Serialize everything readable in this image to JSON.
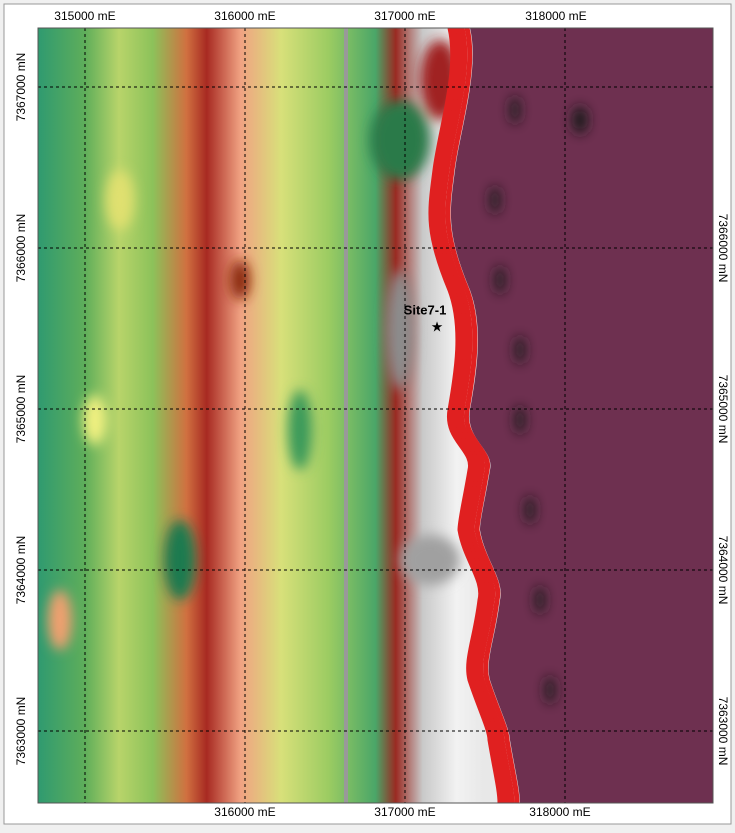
{
  "map": {
    "top_labels": [
      "315000 mE",
      "316000 mE",
      "317000 mE",
      "318000 mE"
    ],
    "bottom_labels": [
      "316000 mE",
      "317000 mE",
      "318000 mE"
    ],
    "left_labels": [
      "7367000 mN",
      "7366000 mN",
      "7365000 mN",
      "7364000 mN",
      "7363000 mN"
    ],
    "right_labels": [
      "7366000 mN",
      "7365000 mN",
      "7364000 mN",
      "7363000 mN"
    ],
    "site": {
      "label": "Site7-1"
    }
  }
}
